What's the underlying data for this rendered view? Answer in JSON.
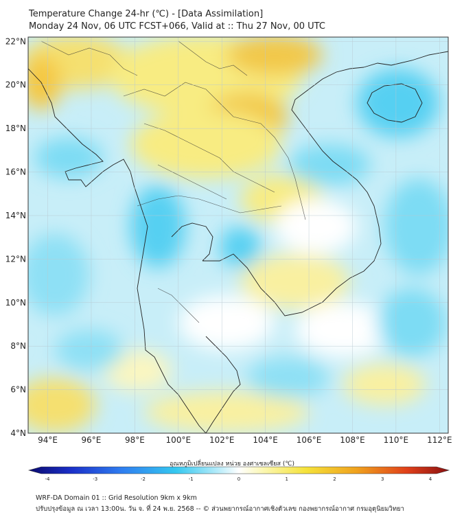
{
  "header": {
    "title": "Temperature Change 24-hr (℃) - [Data Assimilation]",
    "subtitle": "Monday 24 Nov, 06 UTC FCST+066, Valid at :: Thu 27 Nov, 00 UTC"
  },
  "map": {
    "lat_labels": [
      "22°N",
      "20°N",
      "18°N",
      "16°N",
      "14°N",
      "12°N",
      "10°N",
      "8°N",
      "6°N",
      "4°N"
    ],
    "lat_values": [
      22,
      20,
      18,
      16,
      14,
      12,
      10,
      8,
      6,
      4
    ],
    "lon_labels": [
      "94°E",
      "96°E",
      "98°E",
      "100°E",
      "102°E",
      "104°E",
      "106°E",
      "108°E",
      "110°E",
      "112°E"
    ],
    "lon_values": [
      94,
      96,
      98,
      100,
      102,
      104,
      106,
      108,
      110,
      112
    ],
    "lon_range": [
      93.1,
      112.4
    ],
    "lat_range": [
      4,
      22.2
    ]
  },
  "colorbar": {
    "label": "อุณหภูมิเปลี่ยนแปลง หน่วย องศาเซลเซียส (℃)",
    "ticks": [
      "-4",
      "-3",
      "-2",
      "-1",
      "0",
      "1",
      "2",
      "3",
      "4"
    ],
    "tick_values": [
      -4,
      -3,
      -2,
      -1,
      0,
      1,
      2,
      3,
      4
    ],
    "colors": [
      "#0a0a6e",
      "#1a2fc8",
      "#2f7df0",
      "#35c8f0",
      "#b6ecfa",
      "#ffffff",
      "#fbf7b0",
      "#f5e23a",
      "#f0a21e",
      "#e0401a",
      "#8a1010"
    ]
  },
  "footer": {
    "line1": "WRF-DA Domain 01 :: Grid Resolution 9km x 9km",
    "line2": "ปรับปรุงข้อมูล ณ เวลา 13:00น. วัน จ. ที่ 24 พ.ย. 2568 -- © ส่วนพยากรณ์อากาศเชิงตัวเลข กองพยากรณ์อากาศ กรมอุตุนิยมวิทยา"
  }
}
